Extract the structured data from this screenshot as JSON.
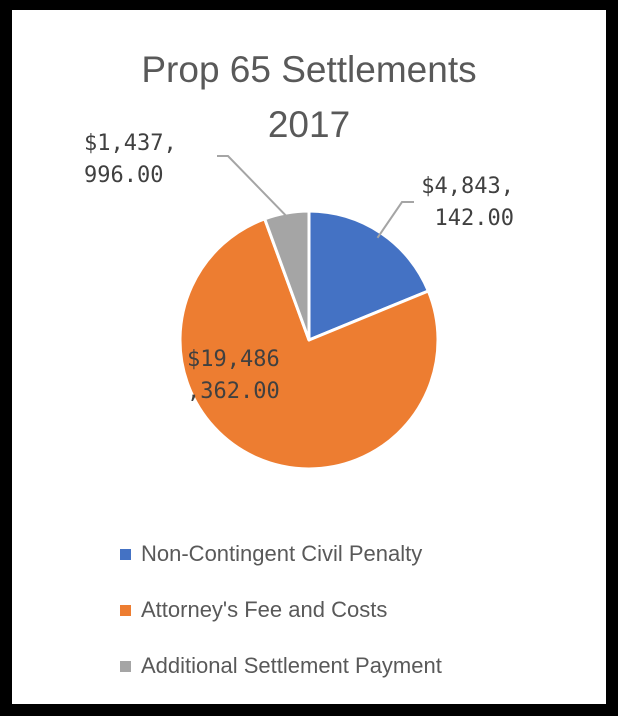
{
  "chart_data": {
    "type": "pie",
    "title": [
      "Prop 65 Settlements",
      "2017"
    ],
    "slices": [
      {
        "name": "Non-Contingent Civil Penalty",
        "value": 4843142.0,
        "label": [
          "$4,843,",
          "142.00"
        ],
        "color": "#4472C4"
      },
      {
        "name": "Attorney's Fee and Costs",
        "value": 19486362.0,
        "label": [
          "$19,486",
          ",362.00"
        ],
        "color": "#ED7D31"
      },
      {
        "name": "Additional Settlement Payment",
        "value": 1437996.0,
        "label": [
          "$1,437,",
          "996.00"
        ],
        "color": "#A5A5A5"
      }
    ],
    "legend_position": "bottom",
    "start_angle_deg": 0,
    "direction": "clockwise"
  }
}
